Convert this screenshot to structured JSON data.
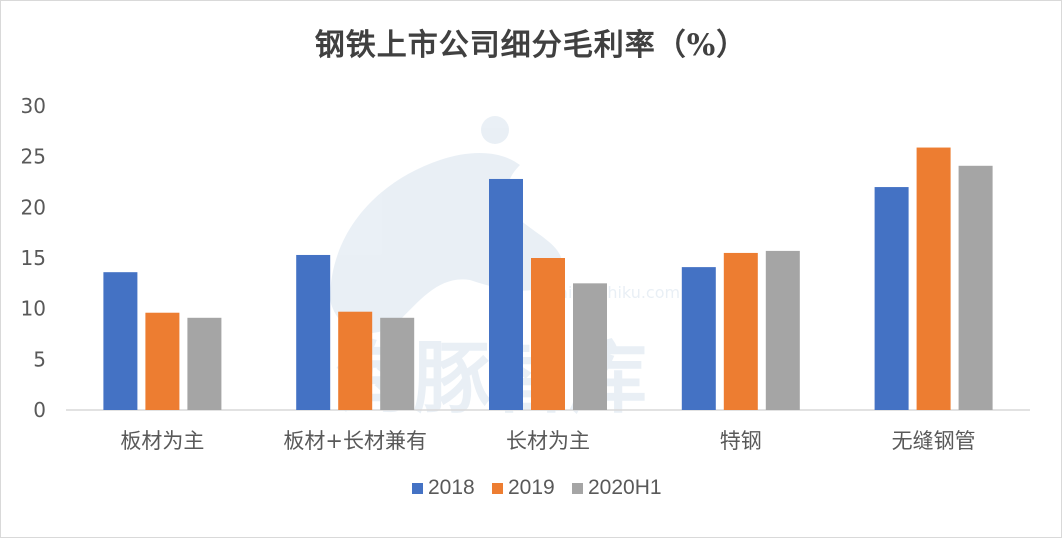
{
  "chart_data": {
    "type": "bar",
    "title": "钢铁上市公司细分毛利率（%）",
    "categories": [
      "板材为主",
      "板材+长材兼有",
      "长材为主",
      "特钢",
      "无缝钢管"
    ],
    "series": [
      {
        "name": "2018",
        "color": "#4472C4",
        "values": [
          13.6,
          15.3,
          22.8,
          14.1,
          22.0
        ]
      },
      {
        "name": "2019",
        "color": "#ED7D31",
        "values": [
          9.6,
          9.7,
          15.0,
          15.5,
          25.9
        ]
      },
      {
        "name": "2020H1",
        "color": "#A5A5A5",
        "values": [
          9.1,
          9.1,
          12.5,
          15.7,
          24.1
        ]
      }
    ],
    "yticks": [
      0,
      5,
      10,
      15,
      20,
      25,
      30
    ],
    "ylim": [
      0,
      30
    ],
    "xlabel": "",
    "ylabel": "",
    "grid": false,
    "legend_position": "bottom"
  },
  "watermark": {
    "cn": "海豚智库",
    "url": "haitunzhiku.com"
  }
}
